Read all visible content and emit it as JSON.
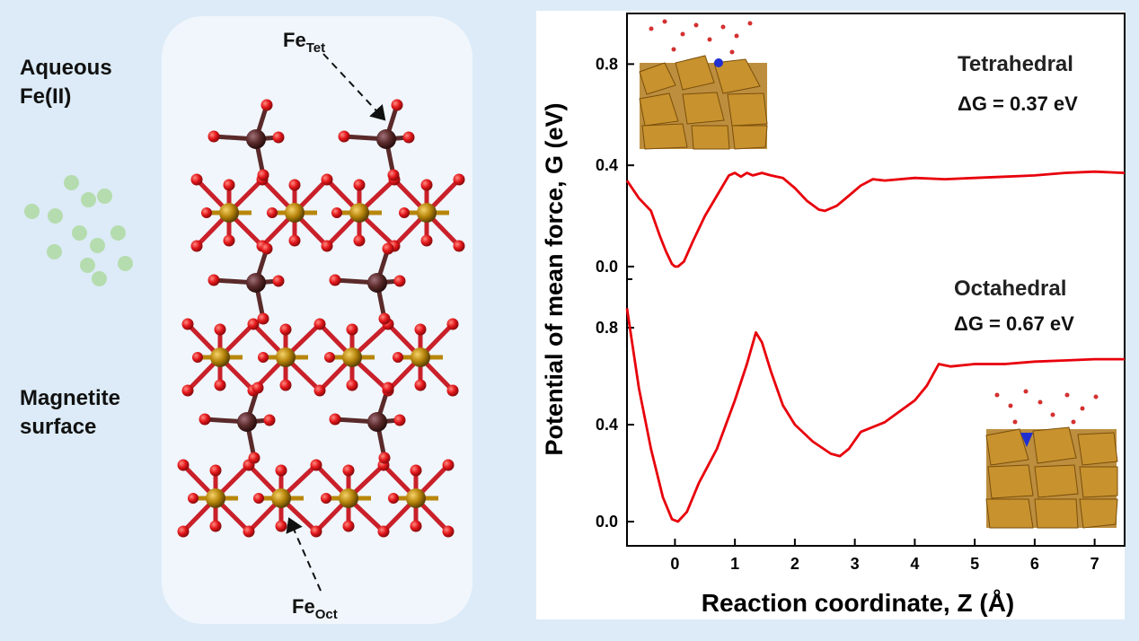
{
  "left": {
    "aqueous_line1": "Aqueous",
    "aqueous_line2": "Fe(II)",
    "surface_line1": "Magnetite",
    "surface_line2": "surface"
  },
  "structure": {
    "tet_label": "Fe",
    "tet_sub": "Tet",
    "oct_label": "Fe",
    "oct_sub": "Oct"
  },
  "colors": {
    "background": "#dcebf7",
    "curve": "#e8000b",
    "oxygen": "#e3171b",
    "fe_oct": "#b8860b",
    "fe_tet": "#5a2a2a",
    "solvated_ion": "#b5dcae"
  },
  "chart_data": {
    "type": "line",
    "xlabel": "Reaction coordinate, Z (Å)",
    "ylabel": "Potential of mean force, G (eV)",
    "xlim": [
      -0.8,
      7.5
    ],
    "xticks": [
      0,
      1,
      2,
      3,
      4,
      5,
      6,
      7
    ],
    "legend": "none",
    "panels": [
      {
        "title": "Tetrahedral",
        "annotation": "ΔG = 0.37 eV",
        "ylim": [
          -0.05,
          1.0
        ],
        "yticks": [
          "0.0",
          "0.4",
          "0.8"
        ],
        "x": [
          -0.8,
          -0.6,
          -0.4,
          -0.25,
          -0.15,
          -0.05,
          0.0,
          0.05,
          0.15,
          0.3,
          0.5,
          0.7,
          0.9,
          1.0,
          1.1,
          1.2,
          1.3,
          1.45,
          1.6,
          1.8,
          2.0,
          2.2,
          2.4,
          2.5,
          2.7,
          2.9,
          3.1,
          3.3,
          3.5,
          4.0,
          4.5,
          5.0,
          5.5,
          6.0,
          6.5,
          7.0,
          7.5
        ],
        "y": [
          0.34,
          0.27,
          0.22,
          0.12,
          0.06,
          0.01,
          0.0,
          0.0,
          0.02,
          0.1,
          0.2,
          0.28,
          0.36,
          0.37,
          0.355,
          0.37,
          0.36,
          0.37,
          0.36,
          0.35,
          0.31,
          0.26,
          0.225,
          0.22,
          0.24,
          0.28,
          0.32,
          0.345,
          0.34,
          0.35,
          0.345,
          0.35,
          0.355,
          0.36,
          0.37,
          0.375,
          0.37
        ]
      },
      {
        "title": "Octahedral",
        "annotation": "ΔG = 0.67 eV",
        "ylim": [
          -0.1,
          1.0
        ],
        "yticks": [
          "0.0",
          "0.4",
          "0.8"
        ],
        "x": [
          -0.8,
          -0.6,
          -0.4,
          -0.2,
          -0.05,
          0.05,
          0.2,
          0.4,
          0.7,
          1.0,
          1.2,
          1.35,
          1.45,
          1.6,
          1.8,
          2.0,
          2.3,
          2.6,
          2.75,
          2.9,
          3.1,
          3.5,
          4.0,
          4.2,
          4.4,
          4.6,
          5.0,
          5.5,
          6.0,
          6.5,
          7.0,
          7.5
        ],
        "y": [
          0.88,
          0.55,
          0.3,
          0.1,
          0.01,
          0.0,
          0.04,
          0.16,
          0.3,
          0.5,
          0.65,
          0.78,
          0.74,
          0.62,
          0.48,
          0.4,
          0.33,
          0.28,
          0.27,
          0.3,
          0.37,
          0.41,
          0.5,
          0.56,
          0.65,
          0.64,
          0.65,
          0.65,
          0.66,
          0.665,
          0.67,
          0.67
        ]
      }
    ]
  }
}
